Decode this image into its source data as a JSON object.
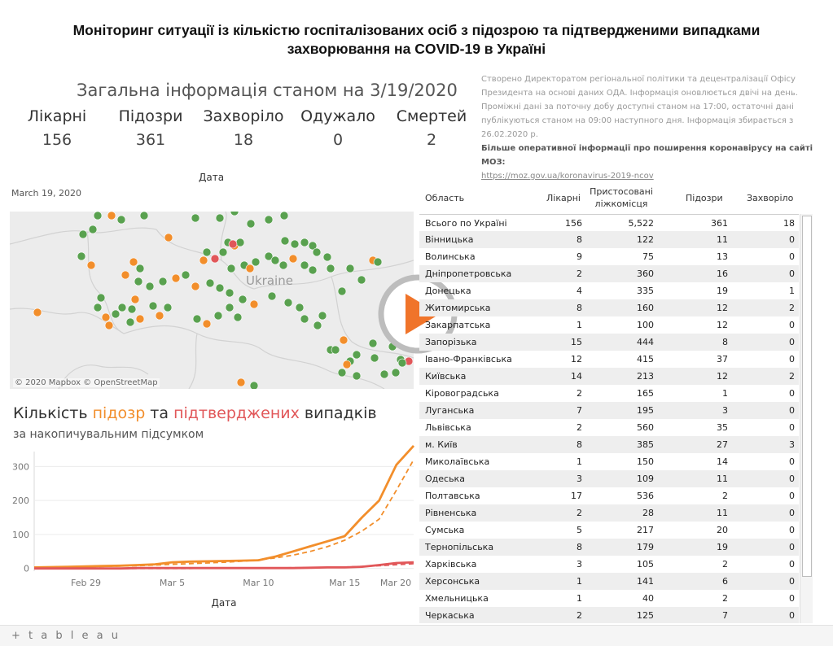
{
  "title": "Моніторинг ситуації із кількістю госпіталізованих осіб з підозрою та підтвердженими випадками захворювання на COVID-19 в Україні",
  "info": {
    "header": "Загальна інформація станом на 3/19/2020",
    "kpis": [
      {
        "label": "Лікарні",
        "value": "156"
      },
      {
        "label": "Підозри",
        "value": "361"
      },
      {
        "label": "Захворіло",
        "value": "18"
      },
      {
        "label": "Одужало",
        "value": "0"
      },
      {
        "label": "Смертей",
        "value": "2"
      }
    ]
  },
  "note": {
    "text": "Створено Директоратом регіональної політики та децентралізації Офісу Президента на основі даних ОДА. Інформація оновлюється двічі на день. Проміжні дані за поточну добу доступні станом на 17:00, остаточні дані публікуються станом на 09:00 наступного дня. Інформація збирається з 26.02.2020 р.",
    "bold": "Більше оперативної інформації про поширення коронавірусу на сайті МОЗ:",
    "link": "https://moz.gov.ua/koronavirus-2019-ncov"
  },
  "map": {
    "axis_title": "Дата",
    "date": "March 19, 2020",
    "country_label": "Ukraine",
    "credit": "© 2020 Mapbox © OpenStreetMap",
    "colors": {
      "hospital": "#59a14f",
      "suspect": "#f28e2b",
      "confirmed": "#e15759"
    }
  },
  "chart": {
    "title_parts": [
      "Кількість ",
      "підозр",
      " та ",
      "підтверджених",
      " випадків"
    ],
    "subtitle": "за накопичувальним підсумком",
    "xlabel": "Дата"
  },
  "chart_data": {
    "type": "line",
    "x": [
      "Feb 26",
      "Feb 27",
      "Feb 28",
      "Feb 29",
      "Mar 1",
      "Mar 2",
      "Mar 3",
      "Mar 4",
      "Mar 5",
      "Mar 6",
      "Mar 7",
      "Mar 8",
      "Mar 9",
      "Mar 10",
      "Mar 11",
      "Mar 12",
      "Mar 13",
      "Mar 14",
      "Mar 15",
      "Mar 16",
      "Mar 17",
      "Mar 18",
      "Mar 19"
    ],
    "xticks": [
      "Feb 29",
      "Mar 5",
      "Mar 10",
      "Mar 15",
      "Mar 20"
    ],
    "series": [
      {
        "name": "підозр",
        "color": "#f28e2b",
        "values": [
          3,
          4,
          5,
          6,
          7,
          8,
          10,
          12,
          18,
          20,
          21,
          22,
          23,
          24,
          35,
          50,
          65,
          80,
          95,
          150,
          200,
          305,
          361
        ]
      },
      {
        "name": "підтверджених",
        "color": "#e15759",
        "values": [
          0,
          0,
          0,
          0,
          0,
          0,
          1,
          1,
          1,
          1,
          1,
          1,
          1,
          1,
          1,
          1,
          2,
          3,
          3,
          5,
          10,
          16,
          18
        ]
      }
    ],
    "trend_lines": [
      {
        "color": "#f28e2b",
        "values": [
          2,
          3,
          4,
          5,
          6,
          7,
          8,
          10,
          12,
          14,
          16,
          18,
          21,
          25,
          31,
          39,
          50,
          64,
          83,
          110,
          145,
          230,
          320
        ]
      },
      {
        "color": "#e15759",
        "values": [
          0,
          0,
          0,
          0,
          0,
          0,
          0,
          0,
          0,
          0,
          1,
          1,
          1,
          1,
          1,
          2,
          2,
          3,
          4,
          6,
          8,
          11,
          14
        ]
      }
    ],
    "ylim": [
      -8,
      380
    ],
    "yticks": [
      0,
      100,
      200,
      300
    ]
  },
  "table": {
    "headers": {
      "region": "Область",
      "hospitals": "Лікарні",
      "beds": "Пристосовані ліжкомісця",
      "suspects": "Підозри",
      "sick": "Захворіло"
    },
    "total": [
      "Всього по Україні",
      "156",
      "5,522",
      "361",
      "18"
    ],
    "rows": [
      [
        "Вінницька",
        "8",
        "122",
        "11",
        "0"
      ],
      [
        "Волинська",
        "9",
        "75",
        "13",
        "0"
      ],
      [
        "Дніпропетровська",
        "2",
        "360",
        "16",
        "0"
      ],
      [
        "Донецька",
        "4",
        "335",
        "19",
        "1"
      ],
      [
        "Житомирська",
        "8",
        "160",
        "12",
        "2"
      ],
      [
        "Закарпатська",
        "1",
        "100",
        "12",
        "0"
      ],
      [
        "Запорізька",
        "15",
        "444",
        "8",
        "0"
      ],
      [
        "Івано-Франківська",
        "12",
        "415",
        "37",
        "0"
      ],
      [
        "Київська",
        "14",
        "213",
        "12",
        "2"
      ],
      [
        "Кіровоградська",
        "2",
        "165",
        "1",
        "0"
      ],
      [
        "Луганська",
        "7",
        "195",
        "3",
        "0"
      ],
      [
        "Львівська",
        "2",
        "560",
        "35",
        "0"
      ],
      [
        "м. Київ",
        "8",
        "385",
        "27",
        "3"
      ],
      [
        "Миколаївська",
        "1",
        "150",
        "14",
        "0"
      ],
      [
        "Одеська",
        "3",
        "109",
        "11",
        "0"
      ],
      [
        "Полтавська",
        "17",
        "536",
        "2",
        "0"
      ],
      [
        "Рівненська",
        "2",
        "28",
        "11",
        "0"
      ],
      [
        "Сумська",
        "5",
        "217",
        "20",
        "0"
      ],
      [
        "Тернопільська",
        "8",
        "179",
        "19",
        "0"
      ],
      [
        "Харківська",
        "3",
        "105",
        "2",
        "0"
      ],
      [
        "Херсонська",
        "1",
        "141",
        "6",
        "0"
      ],
      [
        "Хмельницька",
        "1",
        "40",
        "2",
        "0"
      ],
      [
        "Черкаська",
        "2",
        "125",
        "7",
        "0"
      ]
    ]
  },
  "footer": {
    "brand": "+ t a b l e a u"
  }
}
